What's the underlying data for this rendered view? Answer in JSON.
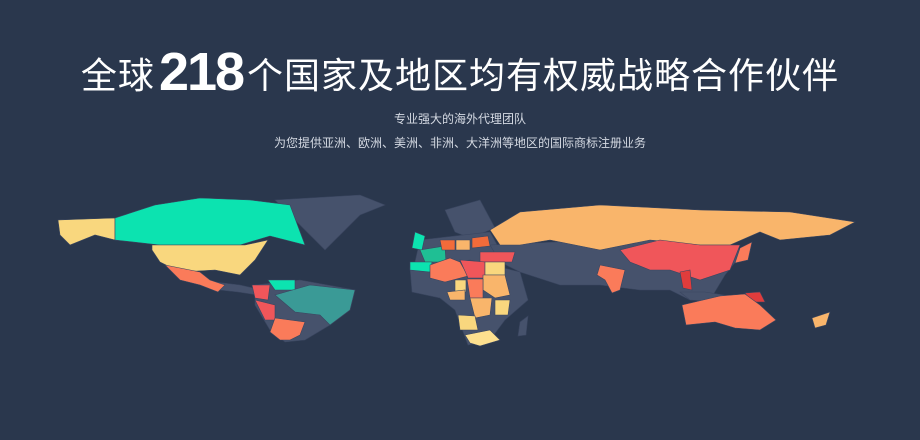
{
  "headline": {
    "prefix": "全球",
    "number": "218",
    "suffix": "个国家及地区均有权威战略合作伙伴"
  },
  "subtitle_1": "专业强大的海外代理团队",
  "subtitle_2": "为您提供亚洲、欧洲、美洲、非洲、大洋洲等地区的国际商标注册业务",
  "colors": {
    "background": "#2a374d",
    "land": "#46526c",
    "teal": "#0ce3b0",
    "teal_dark": "#3a9a96",
    "green": "#1fbf94",
    "yellow": "#f9d77e",
    "light_yellow": "#fde08f",
    "orange": "#f9b56b",
    "coral": "#fa7b5a",
    "red": "#f0565a",
    "deep_red": "#e03c3c",
    "orange_red": "#f26b3a"
  }
}
